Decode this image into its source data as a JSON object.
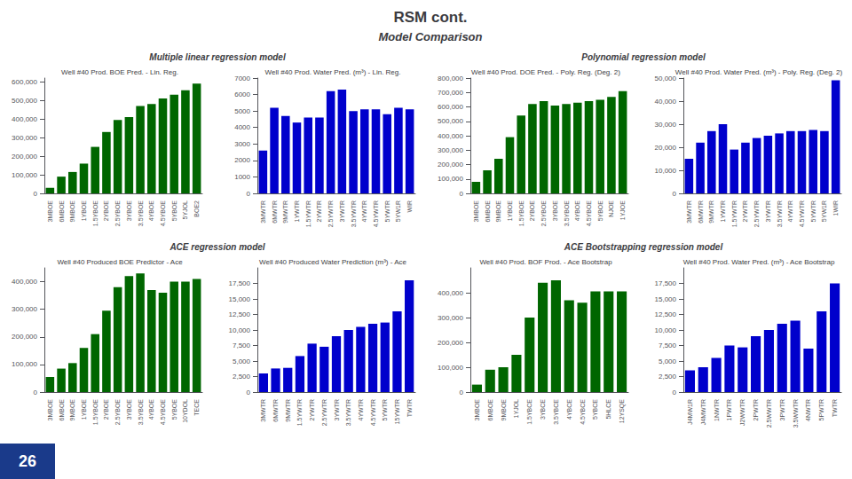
{
  "title": "RSM cont.",
  "subtitle": "Model Comparison",
  "annotations": [
    "Multiple linear regression model",
    "Polynomial regression model",
    "ACE regression model",
    "ACE Bootstrapping regression model",
    "26"
  ],
  "chart_data": [
    {
      "type": "bar",
      "title": "Well #40 Prod. BOE Pred. - Lin. Reg.",
      "color": "#006600",
      "categories": [
        "3MBOE",
        "6MBOE",
        "9MBOE",
        "1YBOE",
        "1.5YBOE",
        "2YBOE",
        "2.5YBOE",
        "3YBOE",
        "3.5YBOE",
        "4YBOE",
        "4.5YBOE",
        "5YBOE",
        "5YJOL",
        "BOE2"
      ],
      "values": [
        30000,
        90000,
        115000,
        160000,
        250000,
        330000,
        395000,
        410000,
        470000,
        480000,
        510000,
        530000,
        555000,
        590000
      ],
      "ylim": [
        0,
        620000
      ],
      "yticks": [
        0,
        {
          "value": 100000,
          "label": "100,000"
        },
        {
          "value": 200000,
          "label": "200,000"
        },
        {
          "value": 300000,
          "label": "300,000"
        },
        {
          "value": 400000,
          "label": "400,000"
        },
        {
          "value": 500000,
          "label": "500,000"
        },
        {
          "value": 600000,
          "label": "600,000"
        }
      ],
      "grid": false
    },
    {
      "type": "bar",
      "title": "Well #40 Prod. Water Pred. (m³) - Lin. Reg.",
      "color": "#0000CC",
      "categories": [
        "3MWTR",
        "6MWTR",
        "9MWTR",
        "1YWTR",
        "1.5YWTR",
        "2YWTR",
        "2.5YWTR",
        "3YWTR",
        "3.5YWTR",
        "4YWTR",
        "4.5YWTR",
        "5YWTR",
        "5YW1R",
        "WIR"
      ],
      "values": [
        2600,
        5200,
        4700,
        4300,
        4600,
        4600,
        6200,
        6300,
        5000,
        5100,
        5100,
        4800,
        5200,
        5100
      ],
      "ylim": [
        0,
        7000
      ],
      "yticks": [
        0,
        1000,
        2000,
        3000,
        4000,
        5000,
        6000,
        7000
      ],
      "grid": false
    },
    {
      "type": "bar",
      "title": "Well #40 Prod. DOE Pred. - Poly. Reg. (Deg. 2)",
      "color": "#006600",
      "categories": [
        "3MBOE",
        "6MBOE",
        "9MBOE",
        "1YBOE",
        "1.5YBOE",
        "2YBOE",
        "2.5YBOE",
        "3YBOE",
        "3.5YBOE",
        "4YBOE",
        "4.5YBOE",
        "5YBOE",
        "NJOE",
        "1YJOE"
      ],
      "values": [
        80000,
        160000,
        240000,
        390000,
        540000,
        620000,
        640000,
        610000,
        620000,
        630000,
        640000,
        650000,
        670000,
        710000
      ],
      "ylim": [
        0,
        800000
      ],
      "yticks": [
        0,
        {
          "value": 100000,
          "label": "100,000"
        },
        {
          "value": 200000,
          "label": "200,000"
        },
        {
          "value": 300000,
          "label": "300,000"
        },
        {
          "value": 400000,
          "label": "400,000"
        },
        {
          "value": 500000,
          "label": "500,000"
        },
        {
          "value": 600000,
          "label": "600,000"
        },
        {
          "value": 700000,
          "label": "700,000"
        },
        {
          "value": 800000,
          "label": "800,000"
        }
      ],
      "grid": false
    },
    {
      "type": "bar",
      "title": "Well #40 Prod. Water Pred. (m³) - Poly. Reg. (Deg. 2)",
      "color": "#0000CC",
      "categories": [
        "3MWTR",
        "6MWTR",
        "9MWTR",
        "1YWTR",
        "1.5YWTR",
        "2YWTR",
        "2.5YWTR",
        "3YWTR",
        "3.5YWTR",
        "4YWTR",
        "4.5YWTR",
        "5YWTR",
        "5YW1R",
        "1WIR"
      ],
      "values": [
        15000,
        22000,
        27000,
        30000,
        19000,
        22000,
        24000,
        25000,
        26000,
        27000,
        27000,
        27500,
        27000,
        49000
      ],
      "ylim": [
        0,
        50000
      ],
      "yticks": [
        0,
        {
          "value": 10000,
          "label": "10,000"
        },
        {
          "value": 20000,
          "label": "20,000"
        },
        {
          "value": 30000,
          "label": "30,000"
        },
        {
          "value": 40000,
          "label": "40,000"
        },
        {
          "value": 50000,
          "label": "50,000"
        }
      ],
      "grid": false
    },
    {
      "type": "bar",
      "title": "Well #40 Produced BOE Predictor - Ace",
      "color": "#006600",
      "categories": [
        "3MBOE",
        "6MBOE",
        "9MBOE",
        "1YBOE",
        "1.5YBOE",
        "2YBOE",
        "2.5YBOE",
        "3YBOE",
        "3.5YBOE",
        "4YBOE",
        "4.5YBOE",
        "5YBOE",
        "10YDOL",
        "TECE"
      ],
      "values": [
        55000,
        85000,
        105000,
        160000,
        210000,
        295000,
        380000,
        420000,
        430000,
        370000,
        360000,
        400000,
        400000,
        410000
      ],
      "ylim": [
        0,
        450000
      ],
      "yticks": [
        0,
        {
          "value": 100000,
          "label": "100,000"
        },
        {
          "value": 200000,
          "label": "200,000"
        },
        {
          "value": 300000,
          "label": "300,000"
        },
        {
          "value": 400000,
          "label": "400,000"
        }
      ],
      "grid": false
    },
    {
      "type": "bar",
      "title": "Well #40 Produced Water Prediction (m³) - Ace",
      "color": "#0000CC",
      "categories": [
        "3MWTR",
        "6MWTR",
        "9MWTR",
        "1.5YWTR",
        "2YWTR",
        "2.5YWTR",
        "3YWTR",
        "3.5YWTR",
        "4YWTR",
        "4.5YWTR",
        "5YWTR",
        "15YWTR",
        "TWTR"
      ],
      "values": [
        3000,
        3800,
        3900,
        5800,
        7800,
        7300,
        9000,
        10000,
        10500,
        11000,
        11200,
        13000,
        18000
      ],
      "ylim": [
        0,
        20000
      ],
      "yticks": [
        0,
        {
          "value": 2500,
          "label": "2,500"
        },
        {
          "value": 5000,
          "label": "5,000"
        },
        {
          "value": 7500,
          "label": "7,500"
        },
        {
          "value": 10000,
          "label": "10,000"
        },
        {
          "value": 12500,
          "label": "12,500"
        },
        {
          "value": 15000,
          "label": "15,000"
        },
        {
          "value": 17500,
          "label": "17,500"
        }
      ],
      "grid": false
    },
    {
      "type": "bar",
      "title": "Well #40 Prod. BOF Prod. - Ace Bootstrap",
      "color": "#006600",
      "categories": [
        "3MBOE",
        "6MBOE",
        "9MBOE",
        "1YJOL",
        "1.5YBCE",
        "3YBCE",
        "3.5YBCE",
        "4YBCE",
        "4.5YBCE",
        "5YBCE",
        "5HLCE",
        "12YSQE"
      ],
      "values": [
        30000,
        90000,
        100000,
        150000,
        300000,
        440000,
        450000,
        370000,
        360000,
        405000,
        405000,
        405000
      ],
      "ylim": [
        0,
        500000
      ],
      "yticks": [
        0,
        {
          "value": 100000,
          "label": "100,000"
        },
        {
          "value": 200000,
          "label": "200,000"
        },
        {
          "value": 300000,
          "label": "300,000"
        },
        {
          "value": 400000,
          "label": "400,000"
        }
      ],
      "grid": false
    },
    {
      "type": "bar",
      "title": "Well #40 Prod. Water Pred. (m³) - Ace Bootstrap",
      "color": "#0000CC",
      "categories": [
        "J4MW1R",
        "J4MWTR",
        "1NWTR",
        "1PWTR",
        "J2WWTR",
        "2PWTR",
        "2.5WWTR",
        "3PWTR",
        "3.5WWTR",
        "4NWTR",
        "5PWTR",
        "TWTR"
      ],
      "values": [
        3500,
        4000,
        5500,
        7500,
        7200,
        9000,
        10000,
        11000,
        11500,
        7000,
        13000,
        17500
      ],
      "ylim": [
        0,
        20000
      ],
      "yticks": [
        0,
        {
          "value": 2500,
          "label": "2,500"
        },
        {
          "value": 5000,
          "label": "5,000"
        },
        {
          "value": 7500,
          "label": "7,500"
        },
        {
          "value": 10000,
          "label": "10,000"
        },
        {
          "value": 12500,
          "label": "12,500"
        },
        {
          "value": 15000,
          "label": "15,000"
        },
        {
          "value": 17500,
          "label": "17,500"
        }
      ],
      "grid": false
    }
  ]
}
